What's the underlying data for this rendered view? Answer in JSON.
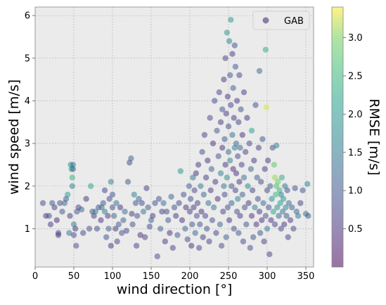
{
  "chart_data": {
    "type": "scatter",
    "xlabel": "wind direction [°]",
    "ylabel": "wind speed [m/s]",
    "xlim": [
      0,
      360
    ],
    "ylim": [
      0.1,
      6.2
    ],
    "xticks": [
      0,
      50,
      100,
      150,
      200,
      250,
      300,
      350
    ],
    "yticks": [
      1,
      2,
      3,
      4,
      5,
      6
    ],
    "grid": true,
    "legend": {
      "label": "GAB",
      "placement": "top-right"
    },
    "colorbar": {
      "label": "RMSE [m/s]",
      "colormap": "viridis",
      "range": [
        0.0,
        3.4
      ],
      "ticks": [
        0.5,
        1.0,
        1.5,
        2.0,
        2.5,
        3.0
      ]
    },
    "marker_alpha": 0.5,
    "colors": {
      "background": "#ebebeb",
      "grid": "#b0b0b0",
      "legend_marker": "#7b6a9b"
    },
    "points": [
      [
        10,
        1.6,
        0.8
      ],
      [
        14,
        1.3,
        0.5
      ],
      [
        18,
        1.3,
        0.9
      ],
      [
        20,
        1.1,
        0.6
      ],
      [
        22,
        1.6,
        1.0
      ],
      [
        25,
        1.5,
        0.7
      ],
      [
        28,
        1.2,
        0.4
      ],
      [
        30,
        0.9,
        0.8
      ],
      [
        30,
        0.85,
        0.5
      ],
      [
        32,
        1.6,
        0.9
      ],
      [
        35,
        1.4,
        1.0
      ],
      [
        38,
        1.6,
        1.2
      ],
      [
        40,
        1.7,
        1.0
      ],
      [
        42,
        1.8,
        2.1
      ],
      [
        44,
        0.9,
        1.4
      ],
      [
        45,
        1.3,
        0.6
      ],
      [
        46,
        2.5,
        1.8
      ],
      [
        47,
        2.4,
        2.0
      ],
      [
        48,
        2.2,
        2.4
      ],
      [
        48,
        2.0,
        1.6
      ],
      [
        49,
        2.5,
        1.5
      ],
      [
        49,
        2.4,
        1.2
      ],
      [
        50,
        1.1,
        1.5
      ],
      [
        50,
        0.85,
        0.8
      ],
      [
        52,
        1.0,
        0.6
      ],
      [
        53,
        0.6,
        0.8
      ],
      [
        54,
        1.4,
        1.0
      ],
      [
        56,
        1.5,
        0.7
      ],
      [
        60,
        1.45,
        1.2
      ],
      [
        62,
        0.9,
        0.8
      ],
      [
        66,
        1.7,
        0.5
      ],
      [
        70,
        1.0,
        0.9
      ],
      [
        72,
        2.0,
        2.2
      ],
      [
        74,
        1.4,
        1.0
      ],
      [
        76,
        1.3,
        0.6
      ],
      [
        78,
        1.4,
        1.5
      ],
      [
        80,
        1.0,
        0.8
      ],
      [
        82,
        1.5,
        0.9
      ],
      [
        85,
        1.2,
        0.5
      ],
      [
        86,
        1.5,
        1.3
      ],
      [
        88,
        1.6,
        1.0
      ],
      [
        90,
        1.4,
        1.6
      ],
      [
        90,
        1.9,
        0.7
      ],
      [
        92,
        0.8,
        0.9
      ],
      [
        94,
        1.3,
        0.6
      ],
      [
        95,
        1.0,
        1.1
      ],
      [
        96,
        1.7,
        0.8
      ],
      [
        98,
        0.6,
        0.5
      ],
      [
        98,
        2.1,
        1.6
      ],
      [
        100,
        1.8,
        1.0
      ],
      [
        100,
        1.5,
        0.9
      ],
      [
        102,
        1.3,
        1.2
      ],
      [
        104,
        1.0,
        0.6
      ],
      [
        105,
        1.6,
        1.4
      ],
      [
        106,
        0.7,
        0.8
      ],
      [
        108,
        1.1,
        1.0
      ],
      [
        110,
        1.5,
        0.5
      ],
      [
        112,
        0.9,
        0.9
      ],
      [
        114,
        1.2,
        1.1
      ],
      [
        116,
        1.4,
        1.3
      ],
      [
        118,
        0.95,
        0.7
      ],
      [
        120,
        2.1,
        1.0
      ],
      [
        122,
        2.55,
        0.8
      ],
      [
        124,
        2.65,
        1.1
      ],
      [
        125,
        1.35,
        0.6
      ],
      [
        126,
        1.1,
        0.9
      ],
      [
        128,
        1.8,
        1.6
      ],
      [
        130,
        1.6,
        1.0
      ],
      [
        131,
        0.6,
        0.7
      ],
      [
        132,
        1.3,
        0.9
      ],
      [
        134,
        1.7,
        1.2
      ],
      [
        136,
        0.85,
        0.5
      ],
      [
        138,
        1.6,
        0.8
      ],
      [
        140,
        1.4,
        1.5
      ],
      [
        142,
        0.8,
        0.7
      ],
      [
        144,
        1.95,
        0.6
      ],
      [
        146,
        1.5,
        1.0
      ],
      [
        148,
        1.05,
        0.8
      ],
      [
        150,
        1.2,
        1.2
      ],
      [
        152,
        1.3,
        0.6
      ],
      [
        155,
        1.6,
        0.9
      ],
      [
        158,
        0.35,
        0.8
      ],
      [
        160,
        1.7,
        0.9
      ],
      [
        162,
        1.0,
        1.1
      ],
      [
        164,
        1.4,
        0.7
      ],
      [
        166,
        1.6,
        1.3
      ],
      [
        168,
        0.7,
        0.6
      ],
      [
        170,
        1.4,
        0.8
      ],
      [
        172,
        1.2,
        1.0
      ],
      [
        174,
        0.9,
        0.5
      ],
      [
        176,
        1.75,
        1.2
      ],
      [
        178,
        0.55,
        0.7
      ],
      [
        180,
        1.5,
        0.9
      ],
      [
        182,
        1.3,
        0.6
      ],
      [
        184,
        0.85,
        1.1
      ],
      [
        186,
        1.6,
        0.8
      ],
      [
        188,
        2.35,
        2.0
      ],
      [
        190,
        1.2,
        0.5
      ],
      [
        192,
        1.8,
        0.9
      ],
      [
        194,
        1.0,
        1.2
      ],
      [
        195,
        1.5,
        0.6
      ],
      [
        197,
        0.75,
        0.8
      ],
      [
        199,
        2.0,
        1.1
      ],
      [
        200,
        1.4,
        0.7
      ],
      [
        201,
        1.7,
        0.9
      ],
      [
        202,
        0.6,
        0.5
      ],
      [
        203,
        1.1,
        1.0
      ],
      [
        204,
        2.2,
        1.4
      ],
      [
        205,
        1.5,
        0.6
      ],
      [
        206,
        1.9,
        0.8
      ],
      [
        207,
        0.9,
        1.2
      ],
      [
        208,
        2.3,
        0.5
      ],
      [
        209,
        1.3,
        0.9
      ],
      [
        210,
        1.6,
        0.7
      ],
      [
        211,
        2.5,
        0.6
      ],
      [
        212,
        0.55,
        0.8
      ],
      [
        213,
        1.1,
        1.0
      ],
      [
        214,
        2.0,
        1.5
      ],
      [
        215,
        1.4,
        0.5
      ],
      [
        216,
        2.8,
        0.9
      ],
      [
        217,
        0.8,
        0.6
      ],
      [
        218,
        1.8,
        1.2
      ],
      [
        219,
        3.2,
        0.7
      ],
      [
        220,
        1.3,
        0.8
      ],
      [
        221,
        2.2,
        0.6
      ],
      [
        222,
        1.0,
        1.0
      ],
      [
        223,
        2.6,
        0.5
      ],
      [
        224,
        1.6,
        1.3
      ],
      [
        225,
        0.7,
        0.7
      ],
      [
        226,
        3.6,
        0.8
      ],
      [
        227,
        1.9,
        0.6
      ],
      [
        228,
        2.4,
        1.1
      ],
      [
        229,
        1.2,
        0.9
      ],
      [
        230,
        3.0,
        0.5
      ],
      [
        231,
        1.5,
        1.4
      ],
      [
        232,
        4.0,
        0.8
      ],
      [
        233,
        2.1,
        0.6
      ],
      [
        234,
        0.9,
        0.7
      ],
      [
        235,
        3.3,
        1.0
      ],
      [
        236,
        1.7,
        0.5
      ],
      [
        237,
        2.7,
        0.9
      ],
      [
        238,
        4.2,
        0.7
      ],
      [
        239,
        1.1,
        1.2
      ],
      [
        240,
        3.5,
        0.6
      ],
      [
        240,
        2.3,
        1.6
      ],
      [
        241,
        0.6,
        0.8
      ],
      [
        242,
        2.9,
        0.5
      ],
      [
        242,
        3.8,
        0.9
      ],
      [
        243,
        1.4,
        0.7
      ],
      [
        244,
        2.0,
        1.5
      ],
      [
        244,
        4.5,
        0.6
      ],
      [
        245,
        3.1,
        1.0
      ],
      [
        245,
        1.8,
        0.8
      ],
      [
        246,
        2.5,
        0.5
      ],
      [
        246,
        5.0,
        0.7
      ],
      [
        247,
        0.8,
        1.1
      ],
      [
        247,
        3.7,
        0.6
      ],
      [
        248,
        2.2,
        1.8
      ],
      [
        248,
        5.6,
        1.9
      ],
      [
        249,
        1.5,
        0.9
      ],
      [
        249,
        4.1,
        0.5
      ],
      [
        250,
        2.8,
        1.3
      ],
      [
        250,
        3.4,
        0.8
      ],
      [
        251,
        5.4,
        1.7
      ],
      [
        251,
        1.2,
        0.6
      ],
      [
        252,
        4.6,
        1.0
      ],
      [
        252,
        2.6,
        1.6
      ],
      [
        253,
        5.9,
        2.0
      ],
      [
        253,
        3.9,
        0.7
      ],
      [
        254,
        2.0,
        0.9
      ],
      [
        254,
        1.6,
        1.2
      ],
      [
        255,
        5.1,
        0.6
      ],
      [
        255,
        3.2,
        1.4
      ],
      [
        256,
        2.4,
        0.5
      ],
      [
        256,
        4.3,
        1.1
      ],
      [
        257,
        1.0,
        0.8
      ],
      [
        257,
        3.6,
        0.6
      ],
      [
        258,
        2.9,
        1.5
      ],
      [
        258,
        5.3,
        0.9
      ],
      [
        259,
        1.9,
        0.7
      ],
      [
        259,
        4.8,
        1.0
      ],
      [
        260,
        2.3,
        0.5
      ],
      [
        260,
        3.0,
        1.3
      ],
      [
        261,
        1.4,
        0.9
      ],
      [
        261,
        4.0,
        0.6
      ],
      [
        262,
        2.7,
        0.8
      ],
      [
        262,
        1.7,
        1.6
      ],
      [
        263,
        3.5,
        0.7
      ],
      [
        263,
        0.9,
        1.0
      ],
      [
        264,
        2.1,
        0.5
      ],
      [
        264,
        4.6,
        0.8
      ],
      [
        265,
        2.9,
        1.2
      ],
      [
        265,
        1.3,
        0.6
      ],
      [
        266,
        3.8,
        0.9
      ],
      [
        267,
        2.5,
        0.7
      ],
      [
        268,
        1.8,
        1.1
      ],
      [
        268,
        3.2,
        0.5
      ],
      [
        269,
        0.7,
        0.8
      ],
      [
        270,
        2.2,
        1.4
      ],
      [
        270,
        4.2,
        0.6
      ],
      [
        271,
        1.5,
        0.9
      ],
      [
        272,
        2.8,
        0.7
      ],
      [
        273,
        1.1,
        1.0
      ],
      [
        274,
        3.6,
        0.5
      ],
      [
        275,
        2.0,
        1.8
      ],
      [
        276,
        1.6,
        0.6
      ],
      [
        277,
        3.0,
        0.8
      ],
      [
        278,
        0.55,
        0.9
      ],
      [
        279,
        2.4,
        1.2
      ],
      [
        280,
        1.3,
        0.5
      ],
      [
        280,
        3.3,
        2.2
      ],
      [
        281,
        1.9,
        0.7
      ],
      [
        282,
        0.8,
        1.0
      ],
      [
        283,
        2.6,
        0.6
      ],
      [
        284,
        1.5,
        1.6
      ],
      [
        285,
        3.9,
        0.8
      ],
      [
        286,
        1.1,
        0.5
      ],
      [
        287,
        2.2,
        1.1
      ],
      [
        288,
        1.7,
        0.9
      ],
      [
        289,
        2.9,
        0.7
      ],
      [
        290,
        1.4,
        0.6
      ],
      [
        290,
        4.7,
        1.2
      ],
      [
        291,
        0.9,
        1.0
      ],
      [
        292,
        2.1,
        0.8
      ],
      [
        293,
        1.2,
        0.5
      ],
      [
        294,
        3.1,
        0.9
      ],
      [
        295,
        1.6,
        1.3
      ],
      [
        296,
        0.7,
        0.7
      ],
      [
        297,
        2.4,
        0.6
      ],
      [
        298,
        1.3,
        1.0
      ],
      [
        298,
        5.2,
        2.3
      ],
      [
        299,
        3.85,
        3.3
      ],
      [
        300,
        1.9,
        0.8
      ],
      [
        300,
        1.0,
        1.5
      ],
      [
        301,
        2.6,
        0.6
      ],
      [
        302,
        1.5,
        0.9
      ],
      [
        303,
        0.4,
        0.7
      ],
      [
        304,
        2.0,
        1.1
      ],
      [
        305,
        1.2,
        0.5
      ],
      [
        306,
        1.7,
        1.8
      ],
      [
        307,
        2.9,
        0.9
      ],
      [
        308,
        1.4,
        2.2
      ],
      [
        309,
        2.5,
        2.8
      ],
      [
        310,
        1.1,
        0.7
      ],
      [
        310,
        2.2,
        3.1
      ],
      [
        311,
        1.8,
        2.5
      ],
      [
        312,
        2.0,
        2.7
      ],
      [
        312,
        2.95,
        1.6
      ],
      [
        313,
        1.5,
        1.9
      ],
      [
        314,
        2.1,
        2.9
      ],
      [
        315,
        1.3,
        1.2
      ],
      [
        316,
        1.9,
        2.4
      ],
      [
        317,
        1.6,
        2.0
      ],
      [
        318,
        1.0,
        0.8
      ],
      [
        318,
        1.8,
        1.6
      ],
      [
        319,
        2.2,
        2.3
      ],
      [
        320,
        1.4,
        1.5
      ],
      [
        321,
        1.7,
        1.9
      ],
      [
        322,
        1.1,
        0.6
      ],
      [
        323,
        2.0,
        1.4
      ],
      [
        324,
        1.5,
        1.7
      ],
      [
        325,
        1.3,
        1.0
      ],
      [
        326,
        1.9,
        0.9
      ],
      [
        327,
        0.8,
        0.7
      ],
      [
        328,
        1.6,
        1.3
      ],
      [
        330,
        1.2,
        0.6
      ],
      [
        332,
        1.5,
        1.1
      ],
      [
        334,
        1.0,
        0.8
      ],
      [
        336,
        1.95,
        0.9
      ],
      [
        338,
        1.4,
        1.2
      ],
      [
        340,
        1.3,
        1.5
      ],
      [
        343,
        1.6,
        0.7
      ],
      [
        346,
        1.9,
        0.9
      ],
      [
        350,
        1.35,
        1.3
      ],
      [
        352,
        2.05,
        1.7
      ],
      [
        353,
        1.3,
        1.0
      ]
    ]
  }
}
